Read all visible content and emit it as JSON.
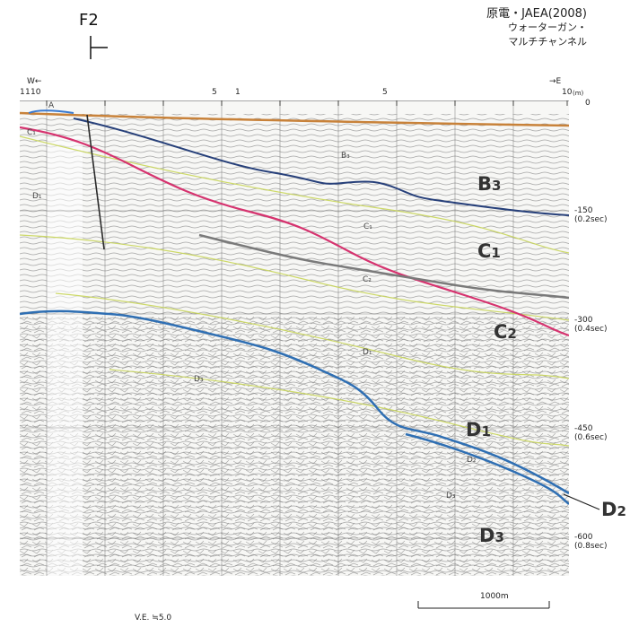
{
  "header": {
    "credit_org": "原電・JAEA(2008)",
    "credit_line1": "ウォーターガン・",
    "credit_line2": "マルチチャンネル",
    "fault_label": "F2"
  },
  "profile": {
    "west": "W←",
    "east": "→E",
    "top_scale": [
      "1",
      "1",
      "10",
      "5",
      "1",
      "5",
      "10"
    ],
    "depth_unit": "(m)",
    "depth_marks": [
      {
        "depth": "0",
        "time": ""
      },
      {
        "depth": "-150",
        "time": "(0.2sec)"
      },
      {
        "depth": "-300",
        "time": "(0.4sec)"
      },
      {
        "depth": "-450",
        "time": "(0.6sec)"
      },
      {
        "depth": "-600",
        "time": "(0.8sec)"
      }
    ],
    "vertical_exaggeration": "V.E. ≒5.0",
    "scale_bar": "1000m"
  },
  "units": {
    "big": [
      {
        "base": "B",
        "sub": "3"
      },
      {
        "base": "C",
        "sub": "1"
      },
      {
        "base": "C",
        "sub": "2"
      },
      {
        "base": "D",
        "sub": "1"
      },
      {
        "base": "D",
        "sub": "2"
      },
      {
        "base": "D",
        "sub": "3"
      }
    ],
    "small": [
      "A",
      "C₁",
      "D₁",
      "B₃",
      "C₁",
      "C₂",
      "D₁",
      "D₃",
      "D₂",
      "D₃"
    ]
  },
  "colors": {
    "seafloor": "#c8823a",
    "b3_boundary": "#27407a",
    "c1_boundary": "#d6336f",
    "c2_boundary": "#7a7a7a",
    "d1_boundary": "#2f6fb3",
    "d2_boundary": "#2f6fb3",
    "faint_green": "#c9d65a"
  }
}
